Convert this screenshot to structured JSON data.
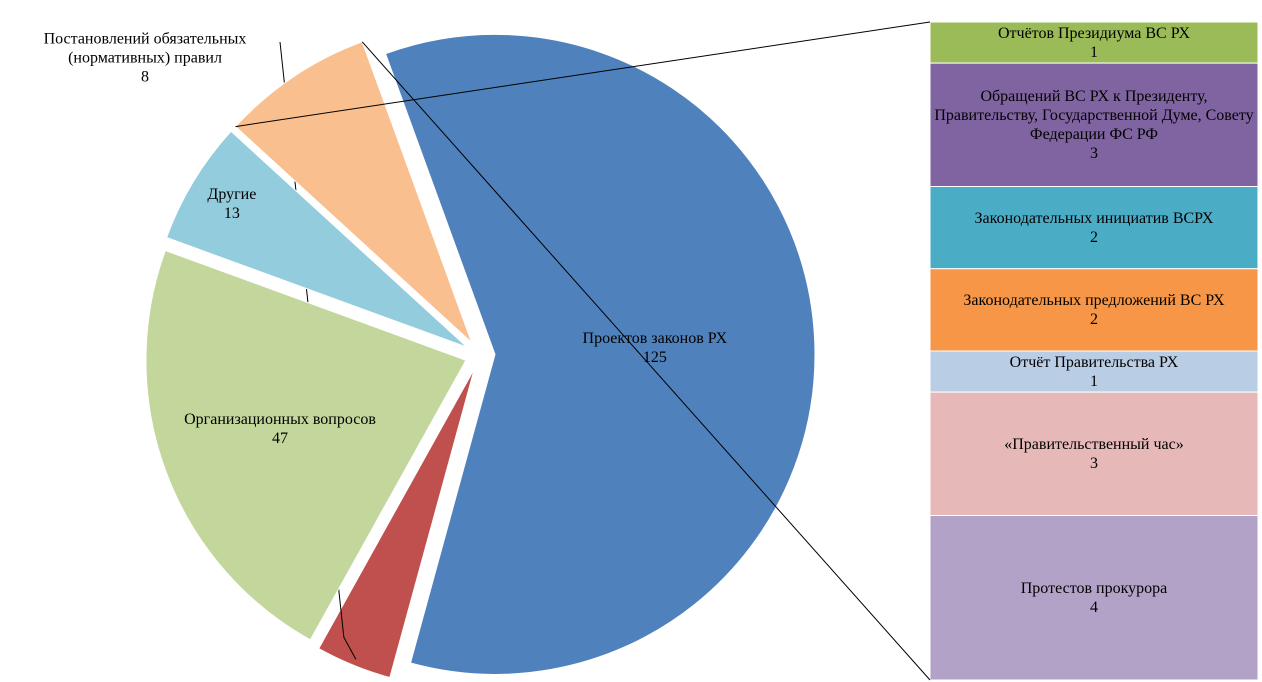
{
  "chart_data": [
    {
      "type": "pie",
      "categories": [
        "Проектов законов РХ",
        "Постановлений обязательных (нормативных) правил",
        "Организационных вопросов",
        "Другие",
        null
      ],
      "values": [
        125,
        8,
        47,
        13,
        16
      ],
      "colors": [
        "#4f81bd",
        "#c0504d",
        "#c3d69b",
        "#93cddd",
        "#fabf8f"
      ]
    },
    {
      "type": "bar",
      "stacked": true,
      "categories": [
        "Отчётов Президиума ВС РХ",
        "Обращений ВС РХ к Президенту, Правительству, Государственной Думе, Совету Федерации ФС РФ",
        "Законодательных инициатив ВСРХ",
        "Законодательных предложений ВС РХ",
        "Отчёт Правительства РХ",
        "«Правительственный час»",
        "Протестов прокурора"
      ],
      "values": [
        1,
        3,
        2,
        2,
        1,
        3,
        4
      ],
      "colors": [
        "#9bbb59",
        "#8064a2",
        "#4bacc6",
        "#f79646",
        "#b9cde5",
        "#e6b9b8",
        "#b3a2c7"
      ]
    }
  ]
}
